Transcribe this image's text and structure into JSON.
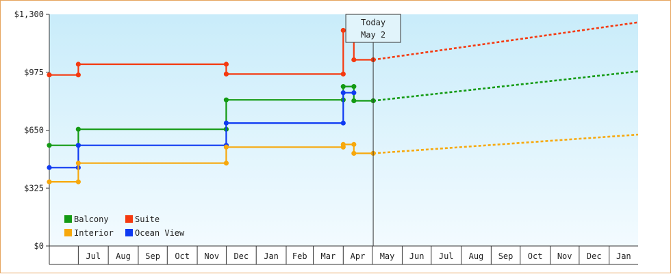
{
  "chart_data": {
    "type": "line",
    "step": true,
    "y_ticks": [
      "$0",
      "$325",
      "$650",
      "$975",
      "$1,300"
    ],
    "ylim": [
      0,
      1300
    ],
    "x_tick_labels": [
      "Jul",
      "Aug",
      "Sep",
      "Oct",
      "Nov",
      "Dec",
      "Jan",
      "Feb",
      "Mar",
      "Apr",
      "May",
      "Jun",
      "Jul",
      "Aug",
      "Sep",
      "Oct",
      "Nov",
      "Dec",
      "Jan"
    ],
    "xlim": [
      "2016-06-01",
      "2018-01-31"
    ],
    "today_marker": {
      "line1": "Today",
      "line2": "May 2",
      "date": "2017-05-02"
    },
    "legend_position": "bottom-left",
    "colors": {
      "Balcony": "#139a13",
      "Suite": "#f5390f",
      "Interior": "#f7a80c",
      "Ocean View": "#0f3af2"
    },
    "series": [
      {
        "name": "Suite",
        "color": "#f5390f",
        "points": [
          [
            "2016-06-01",
            960
          ],
          [
            "2016-07-01",
            960
          ],
          [
            "2016-07-01",
            1020
          ],
          [
            "2016-12-01",
            1020
          ],
          [
            "2016-12-01",
            965
          ],
          [
            "2017-04-01",
            965
          ],
          [
            "2017-04-01",
            1210
          ],
          [
            "2017-04-12",
            1210
          ],
          [
            "2017-04-12",
            1045
          ],
          [
            "2017-05-02",
            1045
          ]
        ],
        "projection": [
          [
            "2017-05-02",
            1045
          ],
          [
            "2018-01-31",
            1255
          ]
        ]
      },
      {
        "name": "Balcony",
        "color": "#139a13",
        "points": [
          [
            "2016-06-01",
            565
          ],
          [
            "2016-07-01",
            565
          ],
          [
            "2016-07-01",
            655
          ],
          [
            "2016-12-01",
            655
          ],
          [
            "2016-12-01",
            820
          ],
          [
            "2017-04-01",
            820
          ],
          [
            "2017-04-01",
            895
          ],
          [
            "2017-04-12",
            895
          ],
          [
            "2017-04-12",
            815
          ],
          [
            "2017-05-02",
            815
          ]
        ],
        "projection": [
          [
            "2017-05-02",
            815
          ],
          [
            "2018-01-31",
            980
          ]
        ]
      },
      {
        "name": "Ocean View",
        "color": "#0f3af2",
        "points": [
          [
            "2016-06-01",
            440
          ],
          [
            "2016-07-01",
            440
          ],
          [
            "2016-07-01",
            565
          ],
          [
            "2016-12-01",
            565
          ],
          [
            "2016-12-01",
            690
          ],
          [
            "2017-04-01",
            690
          ],
          [
            "2017-04-01",
            860
          ],
          [
            "2017-04-12",
            860
          ]
        ]
      },
      {
        "name": "Interior",
        "color": "#f7a80c",
        "points": [
          [
            "2016-06-01",
            360
          ],
          [
            "2016-07-01",
            360
          ],
          [
            "2016-07-01",
            465
          ],
          [
            "2016-12-01",
            465
          ],
          [
            "2016-12-01",
            555
          ],
          [
            "2017-04-01",
            555
          ],
          [
            "2017-04-01",
            570
          ],
          [
            "2017-04-12",
            570
          ],
          [
            "2017-04-12",
            520
          ],
          [
            "2017-05-02",
            520
          ]
        ],
        "projection": [
          [
            "2017-05-02",
            520
          ],
          [
            "2018-01-31",
            625
          ]
        ]
      }
    ]
  }
}
